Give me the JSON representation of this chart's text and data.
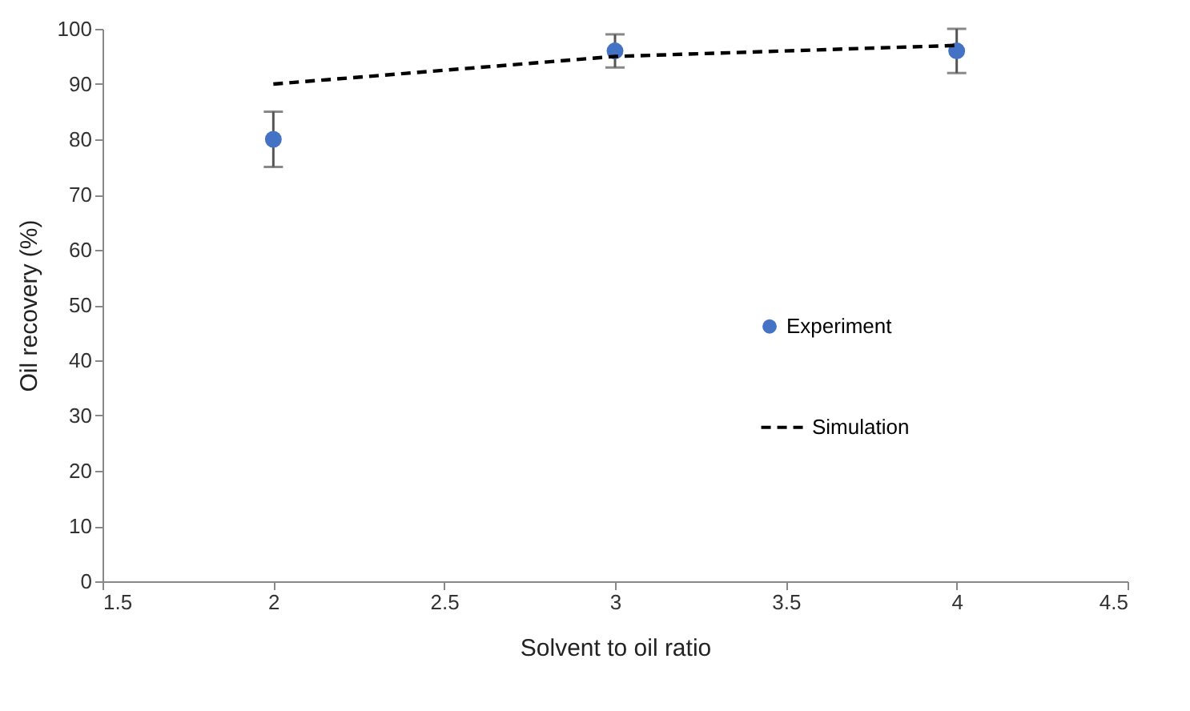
{
  "chart_data": {
    "type": "scatter",
    "xlabel": "Solvent to oil ratio",
    "ylabel": "Oil recovery (%)",
    "x": [
      2,
      3,
      4
    ],
    "series": [
      {
        "name": "Experiment",
        "color": "#4472c4",
        "marker": "circle",
        "values": [
          80,
          96,
          96
        ],
        "errors": [
          5,
          3,
          4
        ]
      },
      {
        "name": "Simulation",
        "type": "line",
        "color": "#000000",
        "line_style": "dashed",
        "marker": "none",
        "values": [
          90,
          95,
          97
        ]
      }
    ],
    "xlim": [
      1.5,
      4.5
    ],
    "xticks": [
      1.5,
      2,
      2.5,
      3,
      3.5,
      4,
      4.5
    ],
    "ylim": [
      0,
      100
    ],
    "yticks": [
      0,
      10,
      20,
      30,
      40,
      50,
      60,
      70,
      80,
      90,
      100
    ],
    "grid": false,
    "legend": "right"
  }
}
